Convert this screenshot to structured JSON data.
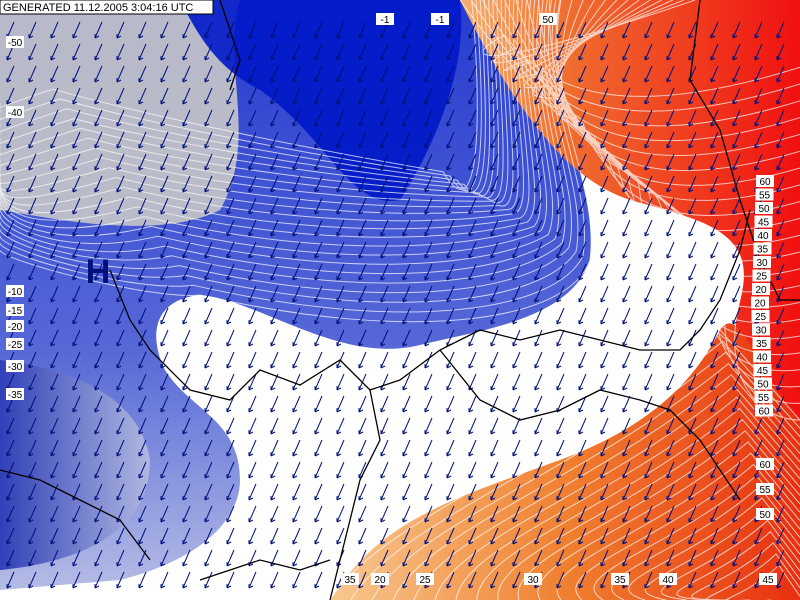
{
  "header": {
    "generated": "GENERATED 11.12.2005 3:04:16 UTC"
  },
  "map": {
    "pressure_center": "H",
    "contour_labels_top": [
      "-1",
      "-1",
      "50"
    ],
    "contour_labels_left": [
      "-50",
      "-40",
      "-10",
      "-15",
      "-20",
      "-25",
      "-30",
      "-35"
    ],
    "contour_labels_right": [
      "60",
      "55",
      "50",
      "45",
      "40",
      "35",
      "30",
      "25",
      "20",
      "20",
      "25",
      "30",
      "35",
      "40",
      "45",
      "50",
      "55",
      "60"
    ],
    "contour_labels_lower_right": [
      "60",
      "55",
      "50"
    ],
    "contour_labels_bottom": [
      "35",
      "20",
      "25",
      "30",
      "35",
      "40",
      "45"
    ]
  }
}
